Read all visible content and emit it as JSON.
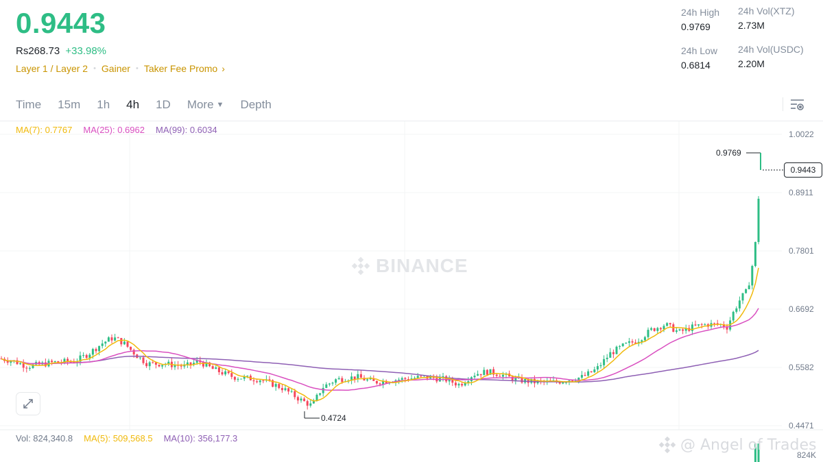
{
  "header": {
    "price": "0.9443",
    "fiat_price": "Rs268.73",
    "change": "+33.98%",
    "tags": [
      "Layer 1 / Layer 2",
      "Gainer",
      "Taker Fee Promo"
    ]
  },
  "stats": {
    "high_label": "24h High",
    "high_value": "0.9769",
    "low_label": "24h Low",
    "low_value": "0.6814",
    "vol_base_label": "24h Vol(XTZ)",
    "vol_base_value": "2.73M",
    "vol_quote_label": "24h Vol(USDC)",
    "vol_quote_value": "2.20M"
  },
  "tabs": {
    "time": "Time",
    "m15": "15m",
    "h1": "1h",
    "h4": "4h",
    "d1": "1D",
    "more": "More",
    "depth": "Depth",
    "active": "4h"
  },
  "ma_legend": {
    "ma7": "MA(7): 0.7767",
    "ma25": "MA(25): 0.6962",
    "ma99": "MA(99): 0.6034"
  },
  "vol_legend": {
    "vol": "Vol: 824,340.8",
    "ma5": "MA(5): 509,568.5",
    "ma10": "MA(10): 356,177.3"
  },
  "chart": {
    "y_ticks": [
      "1.0022",
      "0.8911",
      "0.7801",
      "0.6692",
      "0.5582",
      "0.4471"
    ],
    "current_price": "0.9443",
    "high_marker": "0.9769",
    "low_marker": "0.4724",
    "volume_axis": "824K",
    "watermark": "BINANCE"
  },
  "credit": "@ Angel of Trades",
  "colors": {
    "up": "#2ebd85",
    "down": "#f6465d",
    "ma7": "#f0b90b",
    "ma25": "#d94fc0",
    "ma99": "#8e5fb4",
    "accent": "#c99400"
  }
}
